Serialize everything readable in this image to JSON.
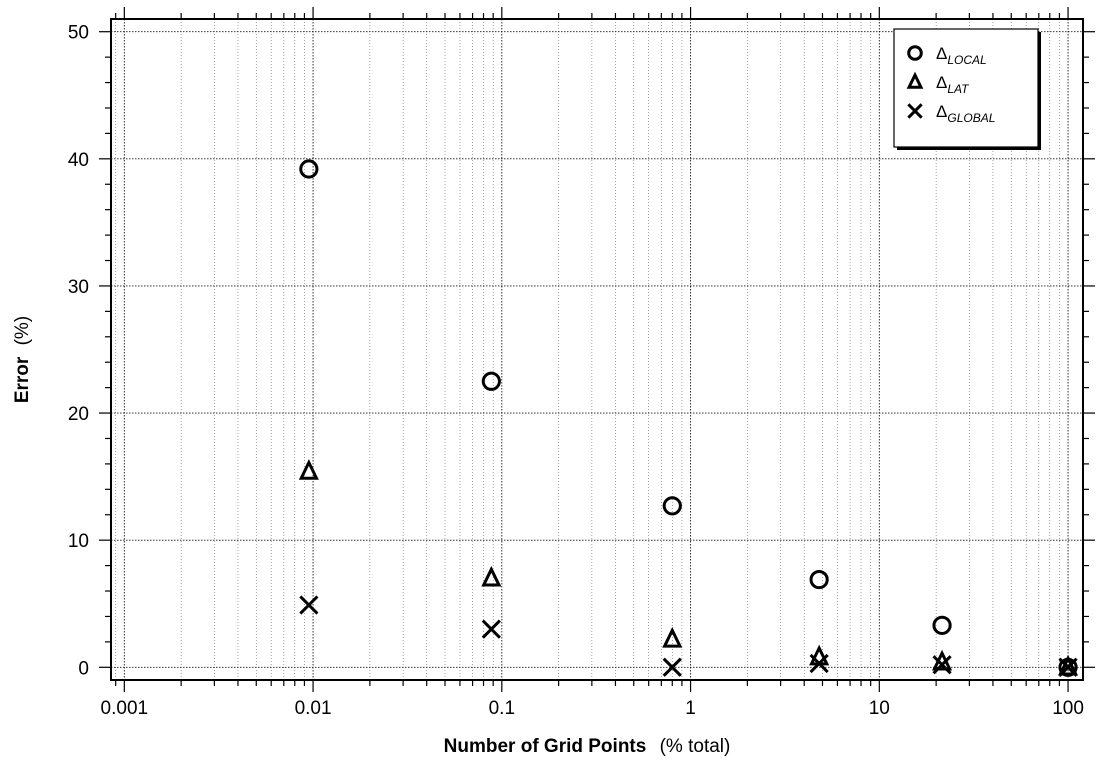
{
  "chart_data": {
    "type": "scatter",
    "xscale": "log",
    "xlim": [
      0.00085,
      120
    ],
    "ylim": [
      -1,
      51
    ],
    "grid": true,
    "legend_position": "top-right",
    "xlabel": {
      "bold": "Number of Grid Points",
      "normal": "(% total)"
    },
    "ylabel": {
      "bold": "Error",
      "normal": "(%)"
    },
    "x_ticks": [
      0.001,
      0.01,
      0.1,
      1,
      10,
      100
    ],
    "x_tick_labels": [
      "0.001",
      "0.01",
      "0.1",
      "1",
      "10",
      "100"
    ],
    "y_ticks": [
      0,
      10,
      20,
      30,
      40,
      50
    ],
    "y_tick_labels": [
      "0",
      "10",
      "20",
      "30",
      "40",
      "50"
    ],
    "series": [
      {
        "name": "Δ",
        "subscript": "LOCAL",
        "marker": "circle",
        "x": [
          0.0095,
          0.088,
          0.8,
          4.8,
          21.5,
          100
        ],
        "y": [
          39.2,
          22.5,
          12.7,
          6.9,
          3.3,
          0
        ]
      },
      {
        "name": "Δ",
        "subscript": "LAT",
        "marker": "triangle",
        "x": [
          0.0095,
          0.088,
          0.8,
          4.8,
          21.5,
          100
        ],
        "y": [
          15.4,
          7.0,
          2.2,
          0.8,
          0.4,
          0
        ]
      },
      {
        "name": "Δ",
        "subscript": "GLOBAL",
        "marker": "cross",
        "x": [
          0.0095,
          0.088,
          0.8,
          4.8,
          21.5,
          100
        ],
        "y": [
          4.9,
          3.0,
          0,
          0.3,
          0.2,
          0
        ]
      }
    ]
  }
}
